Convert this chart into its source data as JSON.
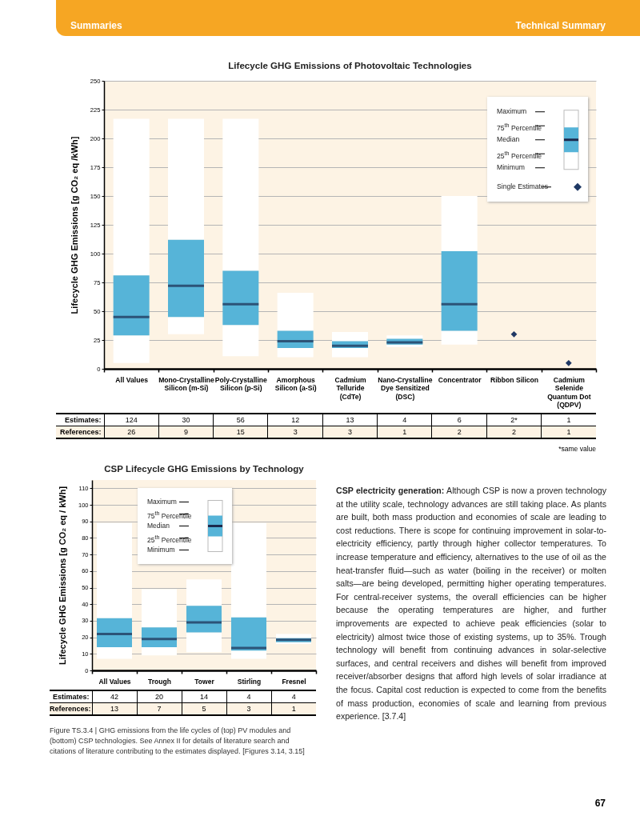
{
  "chart_data": [
    {
      "type": "box",
      "title": "Lifecycle GHG Emissions of Photovoltaic Technologies",
      "ylabel": "Lifecycle GHG Emissions [g CO₂ eq /kWh]",
      "categories": [
        "All Values",
        "Mono-Crystalline Silicon (m-Si)",
        "Poly-Crystalline Silicon (p-Si)",
        "Amorphous Silicon (a-Si)",
        "Cadmium Telluride (CdTe)",
        "Nano-Crystalline Dye Sensitized (DSC)",
        "Concentrator",
        "Ribbon Silicon",
        "Cadmium Selenide Quantum Dot (QDPV)"
      ],
      "series": [
        {
          "type": "box",
          "color": "#56b4d8",
          "boxes": [
            {
              "low": 5,
              "q1": 29,
              "median": 45,
              "q3": 81,
              "high": 217
            },
            {
              "low": 30,
              "q1": 45,
              "median": 72,
              "q3": 112,
              "high": 217
            },
            {
              "low": 11,
              "q1": 38,
              "median": 56,
              "q3": 85,
              "high": 217
            },
            {
              "low": 10,
              "q1": 18,
              "median": 24,
              "q3": 33,
              "high": 66
            },
            {
              "low": 10,
              "q1": 18,
              "median": 20,
              "q3": 24,
              "high": 32
            },
            {
              "low": 19,
              "q1": 21,
              "median": 23,
              "q3": 26,
              "high": 29
            },
            {
              "low": 21,
              "q1": 33,
              "median": 56,
              "q3": 102,
              "high": 150
            },
            null,
            null
          ]
        },
        {
          "type": "scatter",
          "name": "Single Estimates",
          "color": "#1f3864",
          "x": [
            "Ribbon Silicon",
            "Cadmium Selenide Quantum Dot (QDPV)"
          ],
          "values": [
            30,
            5
          ]
        }
      ],
      "marker": "diamond",
      "ylim": [
        0,
        250
      ],
      "yticks": [
        0,
        25,
        50,
        75,
        100,
        125,
        150,
        175,
        200,
        225,
        250
      ],
      "grid": "y",
      "legend": "top right",
      "annotations": [
        "Maximum",
        "75$^{th}$ Percentile",
        "Median",
        "25$^{th}$ Percentile",
        "Minimum",
        "Estimates:",
        "124",
        "30",
        "56",
        "12",
        "13",
        "4",
        "6",
        "2*",
        "1",
        "References:",
        "26",
        "9",
        "15",
        "3",
        "3",
        "1",
        "2",
        "2",
        "1",
        "*same value"
      ]
    },
    {
      "type": "box",
      "title": "CSP Lifecycle GHG Emissions by Technology",
      "ylabel": "Lifecycle GHG Emissions [g CO₂ eq / kWh]",
      "categories": [
        "All Values",
        "Trough",
        "Tower",
        "Stirling",
        "Fresnel"
      ],
      "series": [
        {
          "type": "box",
          "color": "#56b4d8",
          "boxes": [
            {
              "low": 7,
              "q1": 14,
              "median": 22,
              "q3": 31.5,
              "high": 89
            },
            {
              "low": 9,
              "q1": 14,
              "median": 19,
              "q3": 26,
              "high": 49
            },
            {
              "low": 11,
              "q1": 23,
              "median": 29,
              "q3": 39,
              "high": 55
            },
            {
              "low": 7,
              "q1": 12,
              "median": 13.5,
              "q3": 32,
              "high": 89
            },
            {
              "low": 16,
              "q1": 17,
              "median": 18.5,
              "q3": 19.5,
              "high": 22
            }
          ]
        }
      ],
      "ylim": [
        0,
        115
      ],
      "yticks": [
        0,
        10,
        20,
        30,
        40,
        50,
        60,
        70,
        80,
        90,
        100,
        110
      ],
      "grid": "y",
      "annotations": [
        "Maximum",
        "75$^{th}$ Percentile",
        "Median",
        "25$^{th}$ Percentile",
        "Minimum",
        "Estimates:",
        "42",
        "20",
        "14",
        "4",
        "4",
        "References:",
        "13",
        "7",
        "5",
        "3",
        "1",
        "Figure TS.3.4 | GHG emissions from the life cycles of (top) PV modules and (bottom) CSP technologies. See Annex II for details of literature search and citations of literature contributing to the estimates displayed. [Figures 3.14, 3.15]"
      ]
    },
    {
      "type": "other",
      "annotations": [
        "Summaries",
        "Technical Summary",
        "CSP electricity generation: Although CSP is now a proven technology at the utility scale, technology advances are still taking place. As plants are built, both mass production and economies of scale are leading to cost reductions. There is scope for continuing improvement in solar-to-electricity efficiency, partly through higher collector temperatures. To increase temperature and efficiency, alternatives to the use of oil as the heat-transfer fluid—such as water (boiling in the receiver) or molten salts—are being developed, permitting higher operating temperatures. For central-receiver systems, the overall efficiencies can be higher because the operating temperatures are higher, and further improvements are expected to achieve peak efficiencies (solar to electricity) almost twice those of existing systems, up to 35%. Trough technology will benefit from continuing advances in solar-selective surfaces, and central receivers and dishes will benefit from improved receiver/absorber designs that afford high levels of solar irradiance at the focus. Capital cost reduction is expected to come from the benefits of mass production, economies of scale and learning from previous experience. [3.7.4]",
        "67"
      ]
    }
  ]
}
